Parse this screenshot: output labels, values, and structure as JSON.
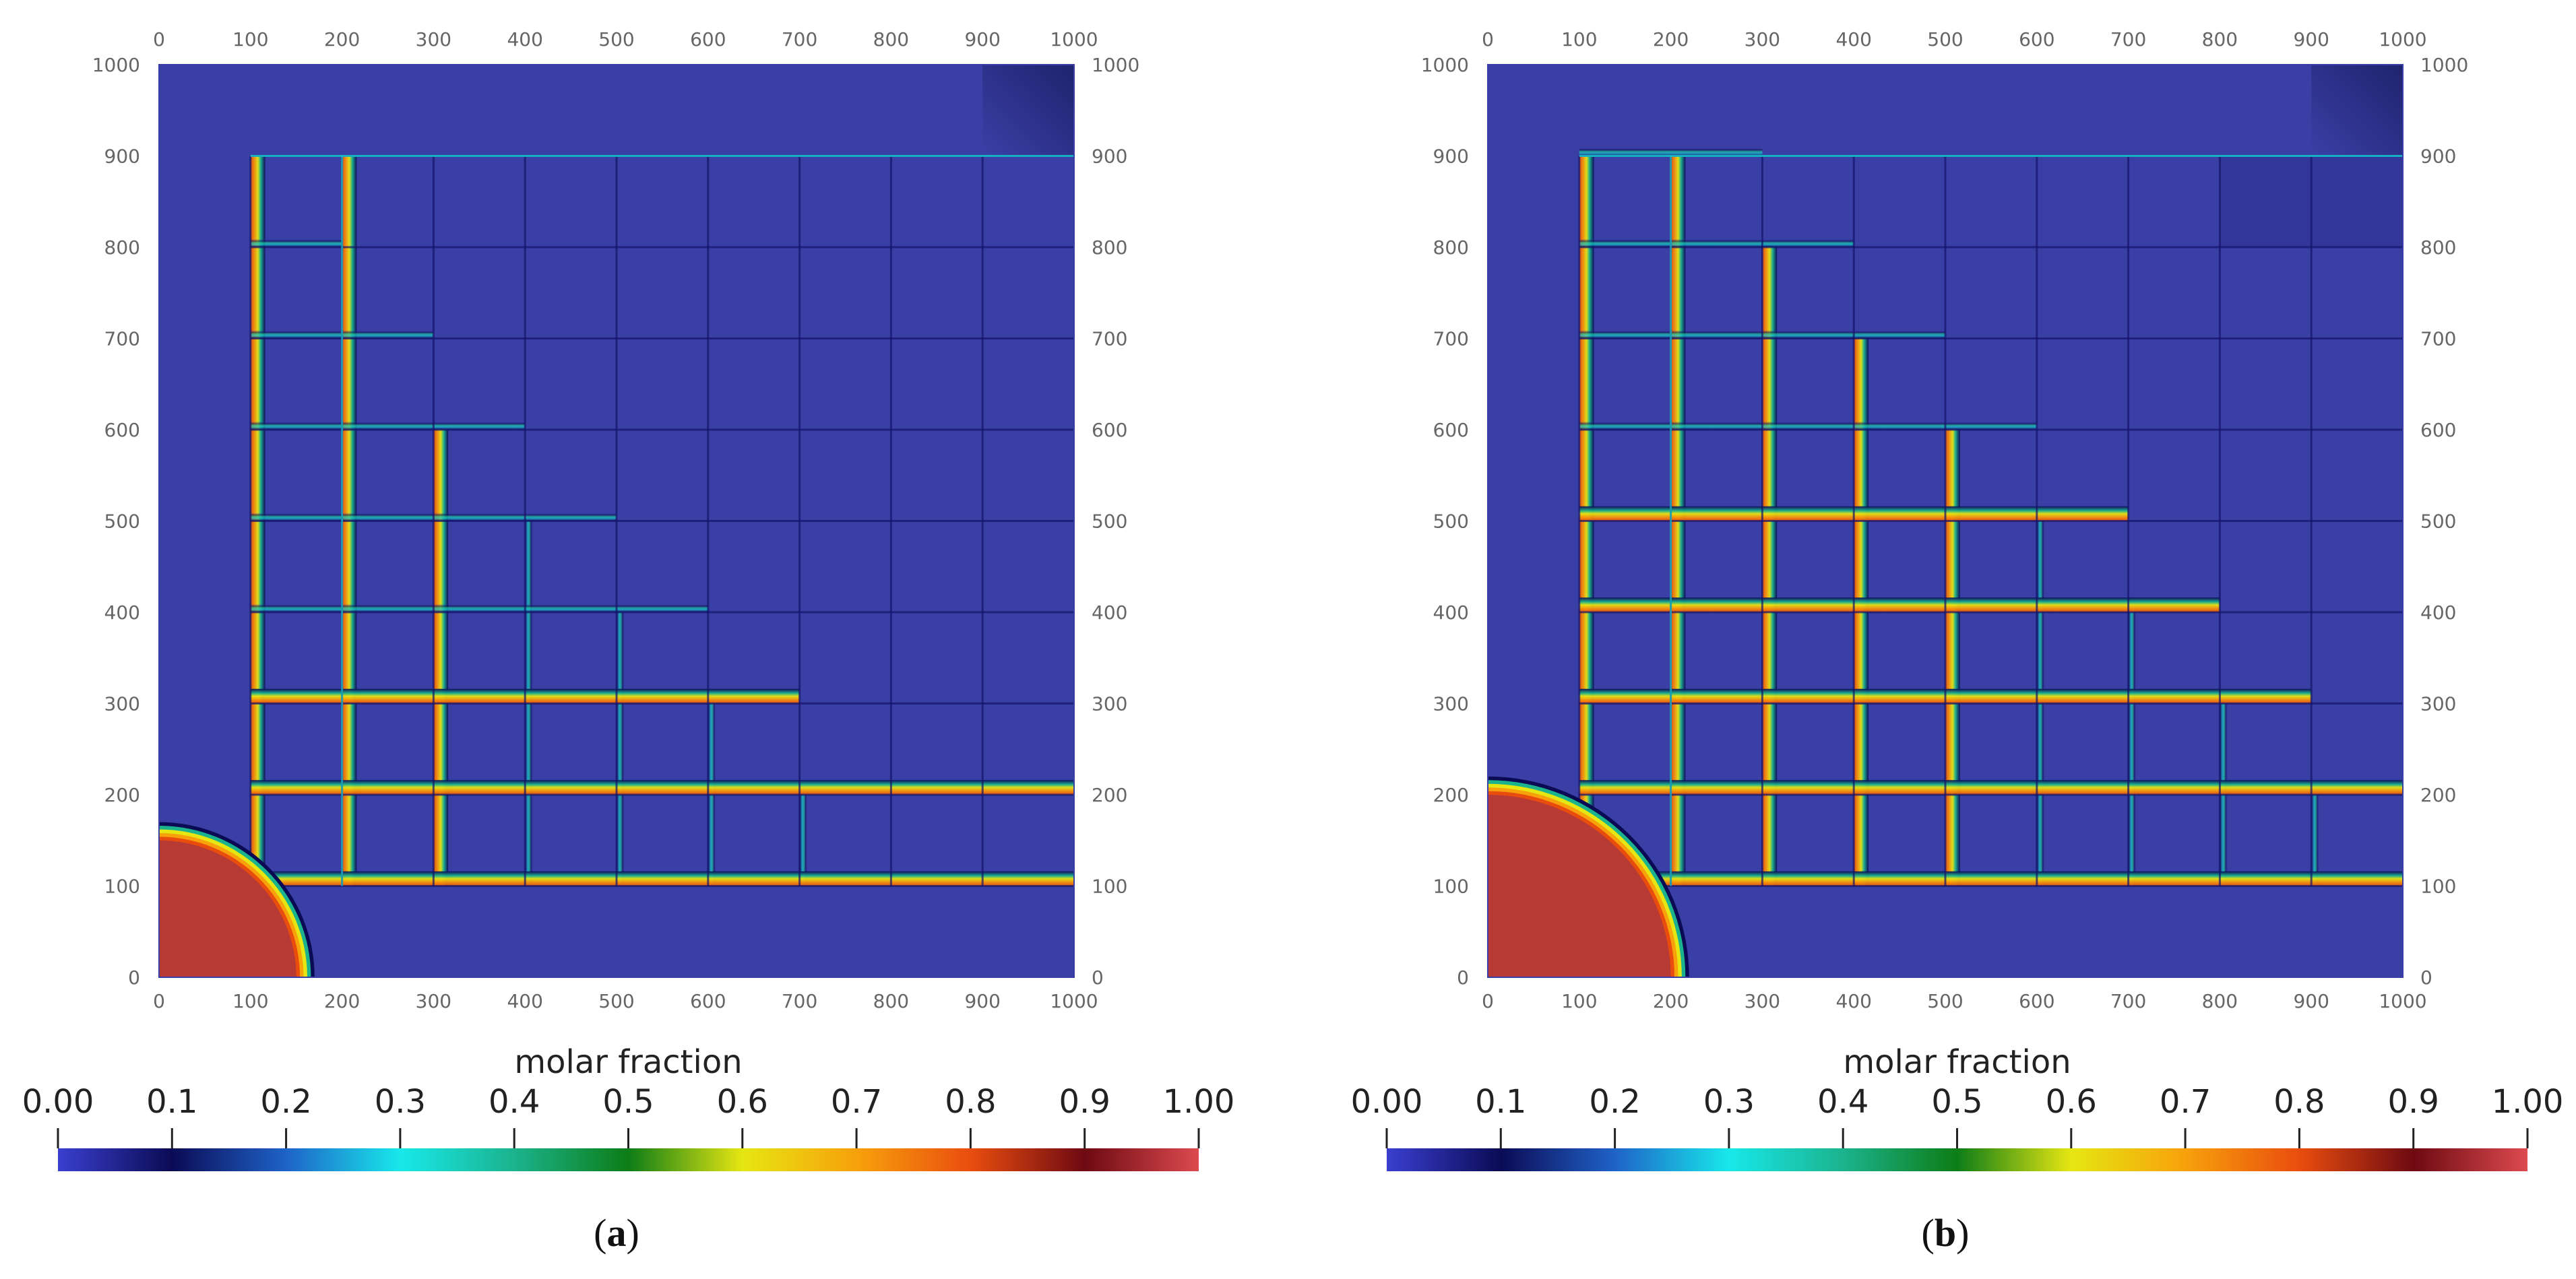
{
  "panels": [
    {
      "id": "a",
      "caption": "(a)",
      "caption_letter": "a",
      "colorbar_title": "molar fraction",
      "colorbar_labels": [
        "0.00",
        "0.1",
        "0.2",
        "0.3",
        "0.4",
        "0.5",
        "0.6",
        "0.7",
        "0.8",
        "0.9",
        "1.00"
      ],
      "axis_labels": [
        "0",
        "100",
        "200",
        "300",
        "400",
        "500",
        "600",
        "700",
        "800",
        "900",
        "1000"
      ]
    },
    {
      "id": "b",
      "caption": "(b)",
      "caption_letter": "b",
      "colorbar_title": "molar fraction",
      "colorbar_labels": [
        "0.00",
        "0.1",
        "0.2",
        "0.3",
        "0.4",
        "0.5",
        "0.6",
        "0.7",
        "0.8",
        "0.9",
        "1.00"
      ],
      "axis_labels": [
        "0",
        "100",
        "200",
        "300",
        "400",
        "500",
        "600",
        "700",
        "800",
        "900",
        "1000"
      ]
    }
  ],
  "colors": {
    "background_field": "#3a3fa6",
    "source_region": "#b83a35",
    "colormap": [
      "#3a3fcf",
      "#0b0b55",
      "#1f63c8",
      "#18e8ea",
      "#1bb38d",
      "#0d7d16",
      "#e6e612",
      "#f7a10b",
      "#e94d0e",
      "#6e0a12",
      "#dc4a4f"
    ]
  },
  "chart_data": [
    {
      "type": "heatmap",
      "title": "",
      "colorbar_label": "molar fraction",
      "xlim": [
        0,
        1000
      ],
      "ylim": [
        0,
        1000
      ],
      "clim": [
        0.0,
        1.0
      ],
      "xticks": [
        0,
        100,
        200,
        300,
        400,
        500,
        600,
        700,
        800,
        900,
        1000
      ],
      "yticks": [
        0,
        100,
        200,
        300,
        400,
        500,
        600,
        700,
        800,
        900,
        1000
      ],
      "grid_lines": [
        100,
        200,
        300,
        400,
        500,
        600,
        700,
        800,
        900
      ],
      "source_radius": 150,
      "front_extent": 300,
      "front_x_extent": 700,
      "front_y_extent": 700
    },
    {
      "type": "heatmap",
      "title": "",
      "colorbar_label": "molar fraction",
      "xlim": [
        0,
        1000
      ],
      "ylim": [
        0,
        1000
      ],
      "clim": [
        0.0,
        1.0
      ],
      "xticks": [
        0,
        100,
        200,
        300,
        400,
        500,
        600,
        700,
        800,
        900,
        1000
      ],
      "yticks": [
        0,
        100,
        200,
        300,
        400,
        500,
        600,
        700,
        800,
        900,
        1000
      ],
      "grid_lines": [
        100,
        200,
        300,
        400,
        500,
        600,
        700,
        800,
        900
      ],
      "source_radius": 200,
      "front_extent": 500,
      "front_x_extent": 900,
      "front_y_extent": 900
    }
  ]
}
